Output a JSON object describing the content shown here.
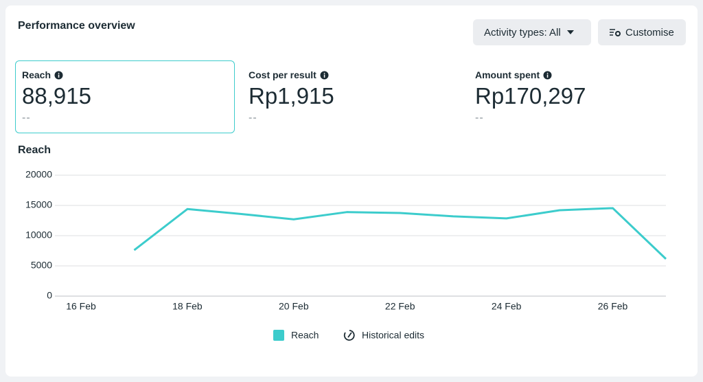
{
  "header": {
    "title": "Performance overview",
    "buttons": [
      "Activity types: All",
      "Customise"
    ]
  },
  "metrics": [
    {
      "label": "Reach",
      "value": "88,915",
      "change": "--"
    },
    {
      "label": "Cost per result",
      "value": "Rp1,915",
      "change": "--"
    },
    {
      "label": "Amount spent",
      "value": "Rp170,297",
      "change": "--"
    }
  ],
  "chart_data": {
    "type": "line",
    "title": "Reach",
    "categories": [
      "16 Feb",
      null,
      "18 Feb",
      null,
      "20 Feb",
      null,
      "22 Feb",
      null,
      "24 Feb",
      null,
      "26 Feb",
      null
    ],
    "series": [
      {
        "name": "Reach",
        "color": "#3ccccc",
        "values": [
          null,
          7600,
          14400,
          13600,
          12700,
          13900,
          13750,
          13200,
          12850,
          14200,
          14550,
          6150
        ]
      }
    ],
    "ylim": [
      0,
      20000
    ],
    "yticks": [
      0,
      5000,
      10000,
      15000,
      20000
    ],
    "grid": true,
    "legend_extra": "Historical edits"
  }
}
